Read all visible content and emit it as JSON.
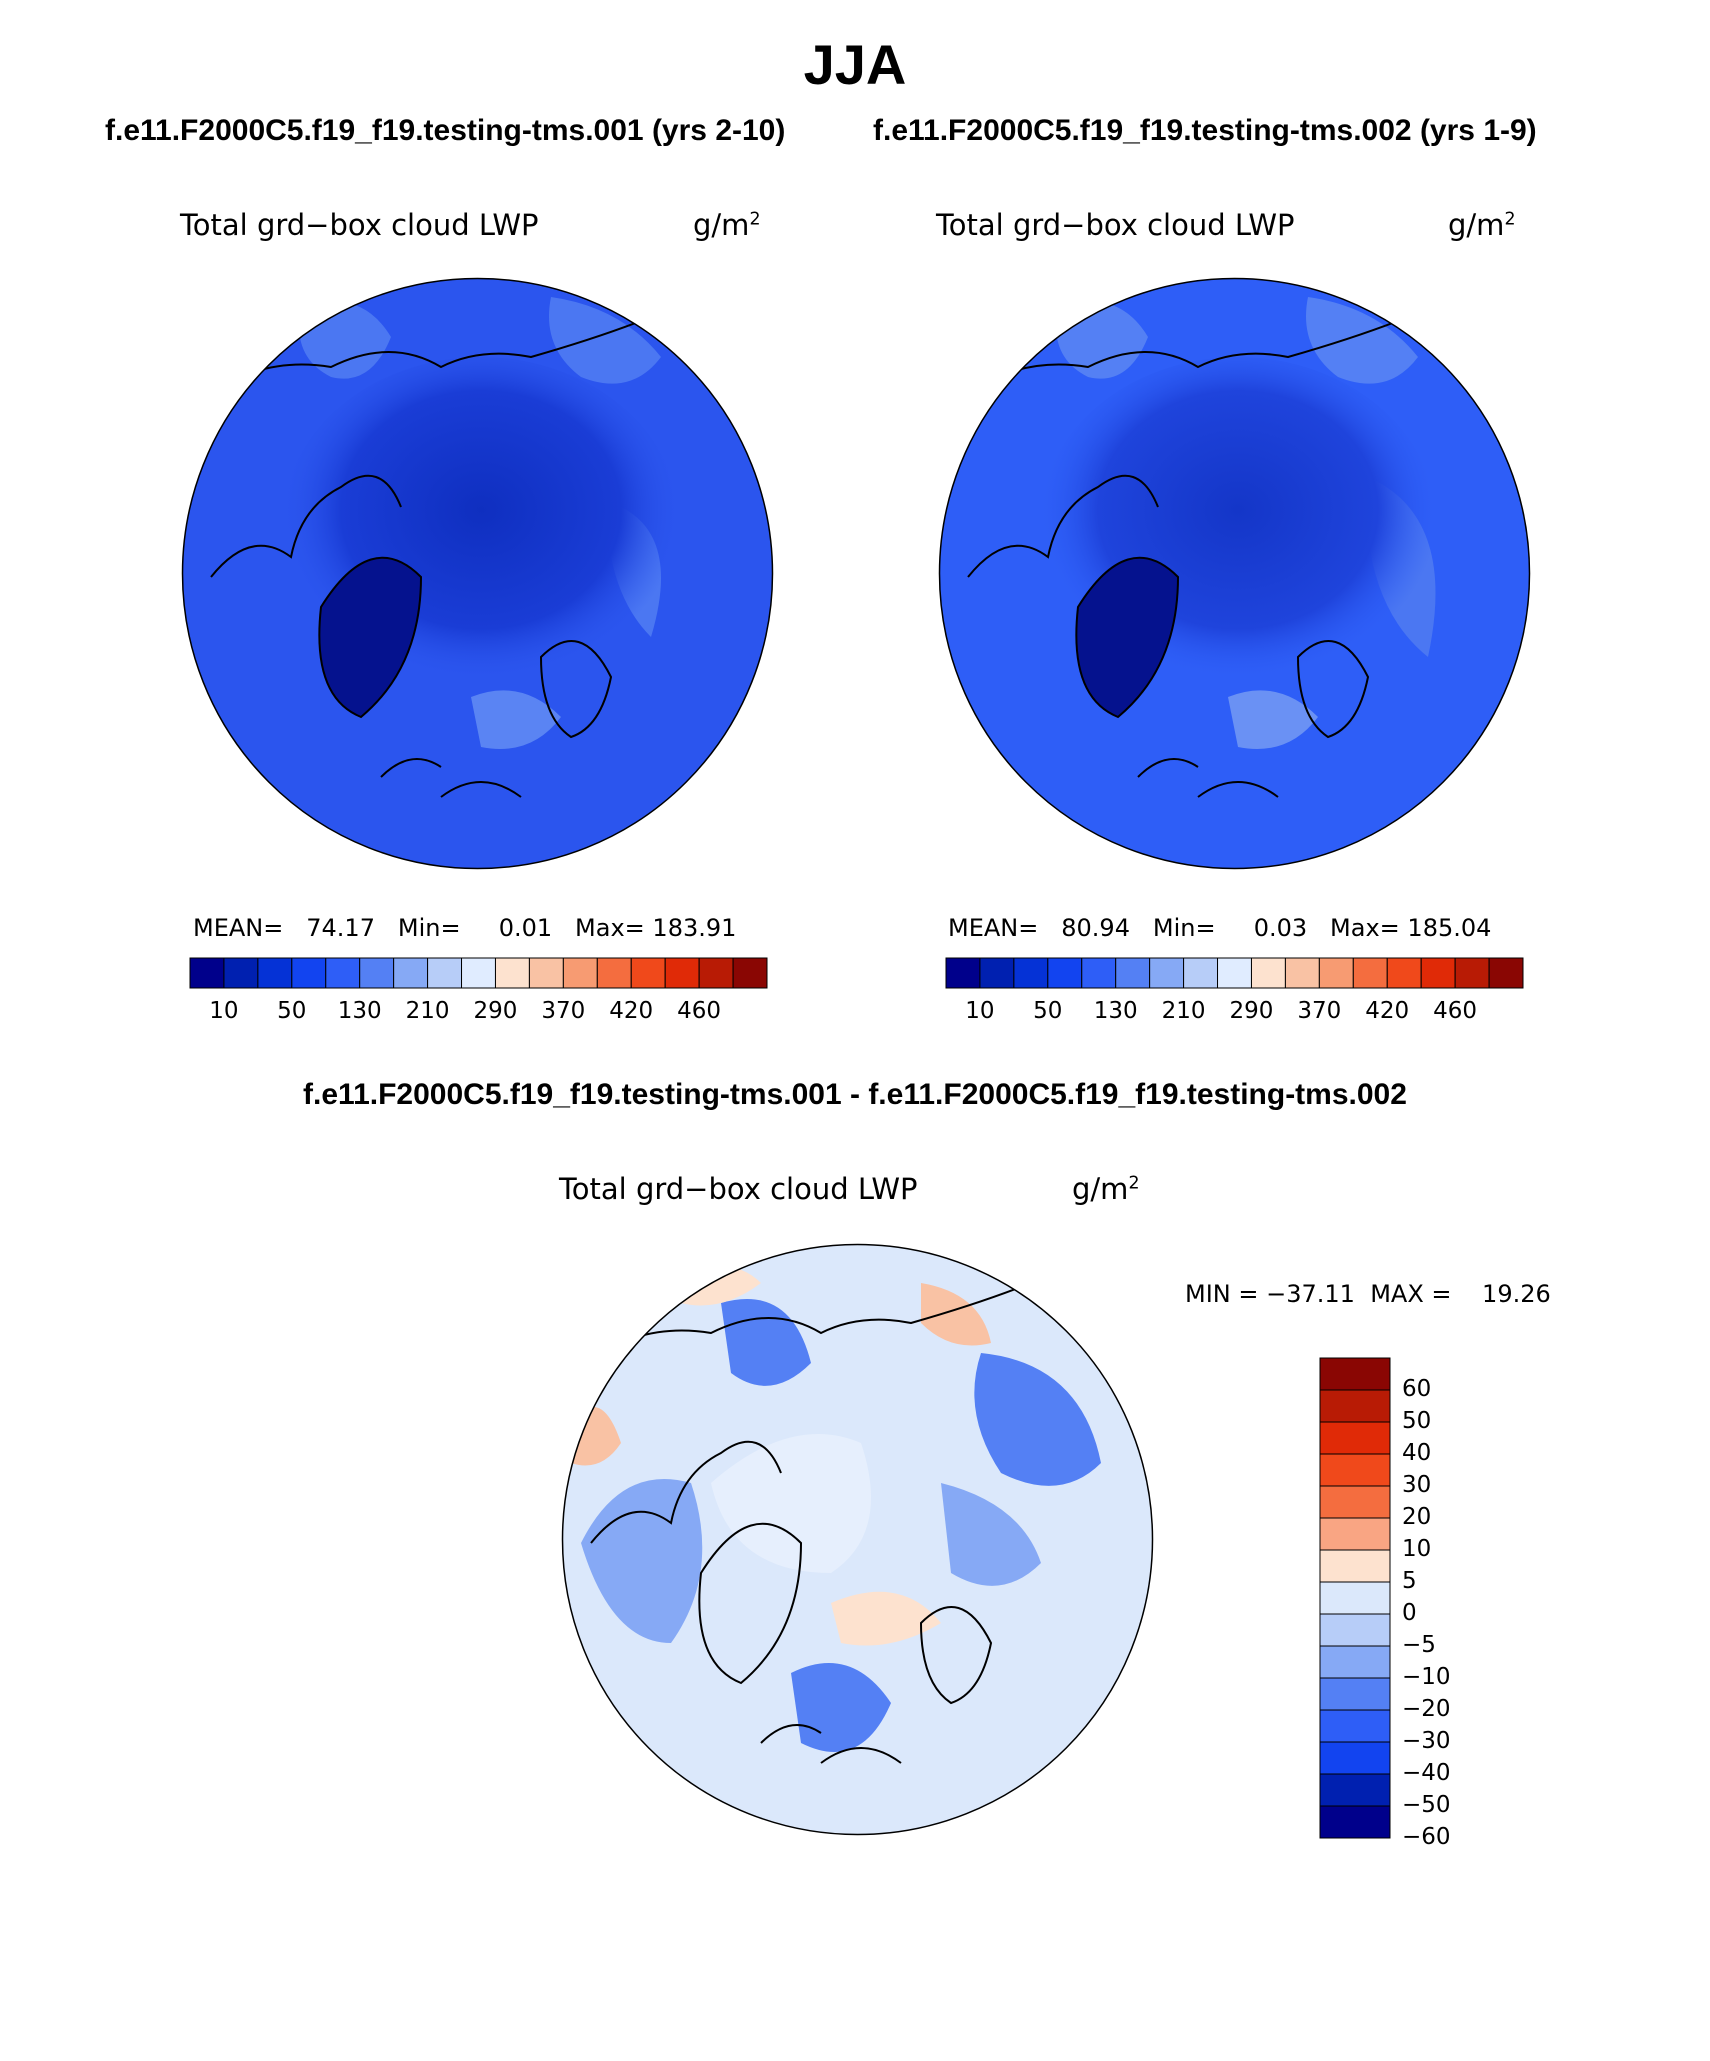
{
  "title": "JJA",
  "panels": [
    {
      "id": "run-001",
      "heading": "f.e11.F2000C5.f19_f19.testing-tms.001 (yrs 2-10)",
      "variable": "Total grd−box cloud LWP",
      "unit": "g/m",
      "unit_exp": "2",
      "mean_label": "MEAN=",
      "mean": "74.17",
      "min_label": "Min=",
      "min": "0.01",
      "max_label": "Max=",
      "max": "183.91"
    },
    {
      "id": "run-002",
      "heading": "f.e11.F2000C5.f19_f19.testing-tms.002 (yrs 1-9)",
      "variable": "Total grd−box cloud LWP",
      "unit": "g/m",
      "unit_exp": "2",
      "mean_label": "MEAN=",
      "mean": "80.94",
      "min_label": "Min=",
      "min": "0.03",
      "max_label": "Max=",
      "max": "185.04"
    }
  ],
  "difference": {
    "heading": "f.e11.F2000C5.f19_f19.testing-tms.001 - f.e11.F2000C5.f19_f19.testing-tms.002",
    "variable": "Total grd−box cloud LWP",
    "unit": "g/m",
    "unit_exp": "2",
    "min_label": "MIN =",
    "min": "−37.11",
    "max_label": "MAX =",
    "max": "19.26"
  },
  "colorbar_main": {
    "colors": [
      "#00008b",
      "#0020b0",
      "#0532d6",
      "#1244f0",
      "#2e5ef7",
      "#5480f4",
      "#86a9f5",
      "#b7cdf8",
      "#e0ecff",
      "#fde2cf",
      "#f9c2a4",
      "#f79b72",
      "#f46d3f",
      "#f0491b",
      "#e02a07",
      "#b81b05",
      "#8a0603"
    ],
    "tick_labels": [
      "10",
      "50",
      "130",
      "210",
      "290",
      "370",
      "420",
      "460"
    ]
  },
  "colorbar_diff": {
    "colors_top_to_bottom": [
      "#8a0603",
      "#b81b05",
      "#e02a07",
      "#f0491b",
      "#f46d3f",
      "#f9a583",
      "#fde2cf",
      "#dbe8fb",
      "#b7cdf8",
      "#86a9f5",
      "#5480f4",
      "#2e5ef7",
      "#1244f0",
      "#0020b0",
      "#00008b"
    ],
    "tick_labels": [
      "60",
      "50",
      "40",
      "30",
      "20",
      "10",
      "5",
      "0",
      "−5",
      "−10",
      "−20",
      "−30",
      "−40",
      "−50",
      "−60"
    ]
  },
  "map_colors": {
    "ocean_mid": "#2b55ee",
    "arctic_core": "#1436c8",
    "greenland": "#05128e",
    "diff_base": "#dbe8fb",
    "diff_blue": "#86a9f5",
    "diff_blue_strong": "#2e5ef7",
    "diff_red": "#fde2cf",
    "diff_red_strong": "#f79b72"
  }
}
